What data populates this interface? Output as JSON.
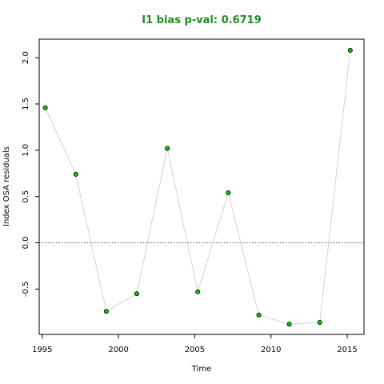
{
  "colors": {
    "title": "#228B22",
    "point_fill": "#00CC00",
    "point_stroke": "#000000",
    "line": "#C8C8C8",
    "zero_line": "#555555"
  },
  "chart_data": {
    "type": "scatter",
    "title": "I1 bias p-val: 0.6719",
    "xlabel": "Time",
    "ylabel": "Index OSA residuals",
    "xlim": [
      1994.8,
      2016.1
    ],
    "ylim": [
      -0.99,
      2.2
    ],
    "xticks": [
      "1995",
      "2000",
      "2005",
      "2010",
      "2015"
    ],
    "yticks": [
      "-0.5",
      "0.0",
      "0.5",
      "1.0",
      "1.5",
      "2.0"
    ],
    "reference_line": {
      "y": 0,
      "style": "dotted"
    },
    "grid": false,
    "series": [
      {
        "x": [
          1995.2,
          1997.2,
          1999.2,
          2001.2,
          2003.2,
          2005.2,
          2007.2,
          2009.2,
          2011.2,
          2013.2,
          2015.2
        ],
        "y": [
          1.46,
          0.74,
          -0.74,
          -0.55,
          1.02,
          -0.53,
          0.54,
          -0.78,
          -0.88,
          -0.86,
          2.08
        ]
      }
    ]
  }
}
